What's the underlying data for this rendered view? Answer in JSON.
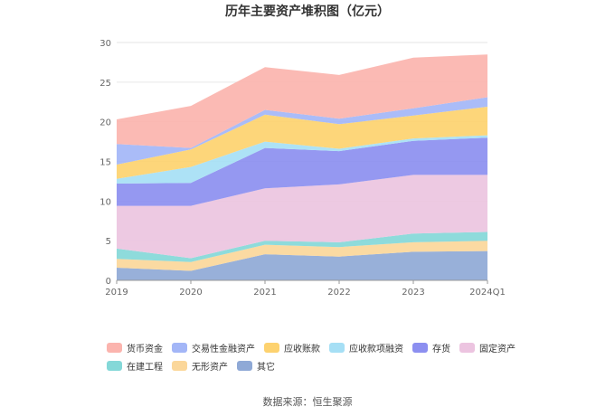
{
  "title": "历年主要资产堆积图（亿元）",
  "source": "数据来源：恒生聚源",
  "chart_data": {
    "type": "area",
    "stacked": true,
    "title": "历年主要资产堆积图（亿元）",
    "x": [
      "2019",
      "2020",
      "2021",
      "2022",
      "2023",
      "2024Q1"
    ],
    "ylim": [
      0,
      30
    ],
    "yticks": [
      "0",
      "5",
      "10",
      "15",
      "20",
      "25",
      "30"
    ],
    "grid": true,
    "legend_position": "bottom",
    "series": [
      {
        "name": "其它",
        "color": "#8fa9d6",
        "values": [
          1.6,
          1.2,
          3.3,
          3.0,
          3.6,
          3.7
        ]
      },
      {
        "name": "无形资产",
        "color": "#fbd79a",
        "values": [
          1.1,
          1.1,
          1.2,
          1.2,
          1.2,
          1.3
        ]
      },
      {
        "name": "在建工程",
        "color": "#84d8d8",
        "values": [
          1.3,
          0.5,
          0.5,
          0.6,
          1.1,
          1.1
        ]
      },
      {
        "name": "固定资产",
        "color": "#ecc4e0",
        "values": [
          5.4,
          6.6,
          6.6,
          7.3,
          7.4,
          7.2
        ]
      },
      {
        "name": "存货",
        "color": "#8c8ff0",
        "values": [
          2.8,
          2.9,
          5.1,
          4.2,
          4.3,
          4.7
        ]
      },
      {
        "name": "应收款项融资",
        "color": "#a6dff5",
        "values": [
          0.6,
          2.0,
          0.8,
          0.3,
          0.3,
          0.3
        ]
      },
      {
        "name": "应收账款",
        "color": "#fdd26f",
        "values": [
          1.8,
          2.2,
          3.4,
          3.1,
          2.9,
          3.6
        ]
      },
      {
        "name": "交易性金融资产",
        "color": "#a3b6f7",
        "values": [
          2.6,
          0.2,
          0.6,
          0.7,
          0.9,
          1.2
        ]
      },
      {
        "name": "货币资金",
        "color": "#fbb4ae",
        "values": [
          3.1,
          5.3,
          5.4,
          5.5,
          6.4,
          5.4
        ]
      }
    ],
    "legend_order": [
      "货币资金",
      "交易性金融资产",
      "应收账款",
      "应收款项融资",
      "存货",
      "固定资产",
      "在建工程",
      "无形资产",
      "其它"
    ]
  }
}
